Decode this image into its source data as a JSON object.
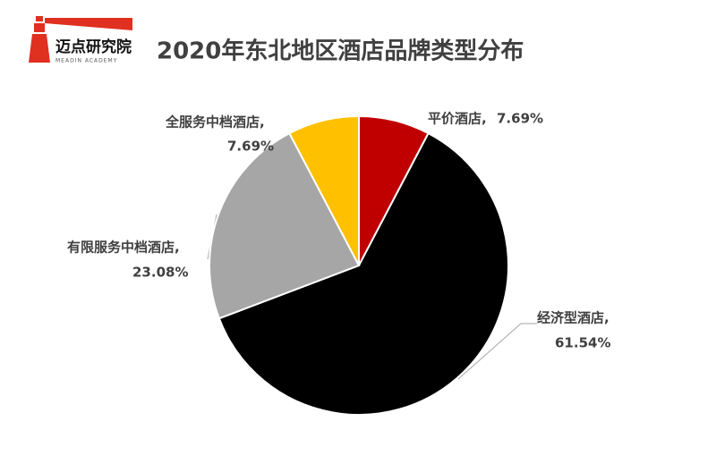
{
  "logo": {
    "name": "迈点研究院",
    "subname": "MEADIN ACADEMY"
  },
  "chart_data": {
    "type": "pie",
    "title": "2020年东北地区酒店品牌类型分布",
    "categories": [
      "平价酒店,",
      "经济型酒店,",
      "有限服务中档酒店,",
      "全服务中档酒店,"
    ],
    "values": [
      7.69,
      61.54,
      23.08,
      7.69
    ],
    "value_labels": [
      "7.69%",
      "61.54%",
      "23.08%",
      "7.69%"
    ],
    "colors": [
      "#c00000",
      "#000000",
      "#a6a6a6",
      "#ffc000"
    ]
  }
}
